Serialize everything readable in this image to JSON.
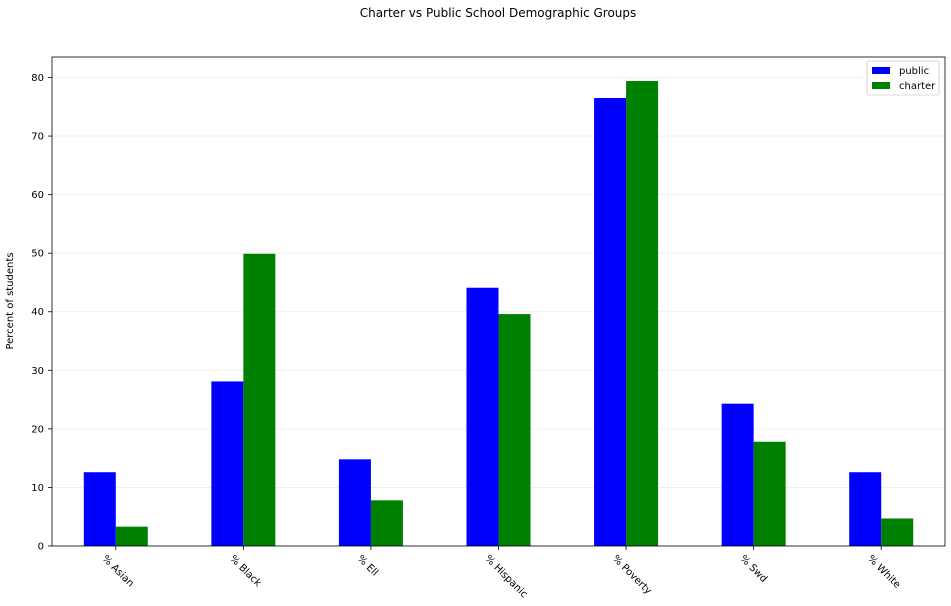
{
  "chart_data": {
    "type": "bar",
    "title": "Charter vs Public School Demographic Groups",
    "xlabel": "",
    "ylabel": "Percent of students",
    "categories": [
      "% Asian",
      "% Black",
      "% Ell",
      "% Hispanic",
      "% Poverty",
      "% Swd",
      "% White"
    ],
    "series": [
      {
        "name": "public",
        "color": "#0000ff",
        "values": [
          12.6,
          28.1,
          14.8,
          44.1,
          76.5,
          24.3,
          12.6
        ]
      },
      {
        "name": "charter",
        "color": "#008000",
        "values": [
          3.3,
          49.9,
          7.8,
          39.6,
          79.4,
          17.8,
          4.7
        ]
      }
    ],
    "ylim": [
      0,
      83.5
    ],
    "yticks": [
      0,
      10,
      20,
      30,
      40,
      50,
      60,
      70,
      80
    ],
    "grid": true,
    "legend_position": "top-right"
  }
}
